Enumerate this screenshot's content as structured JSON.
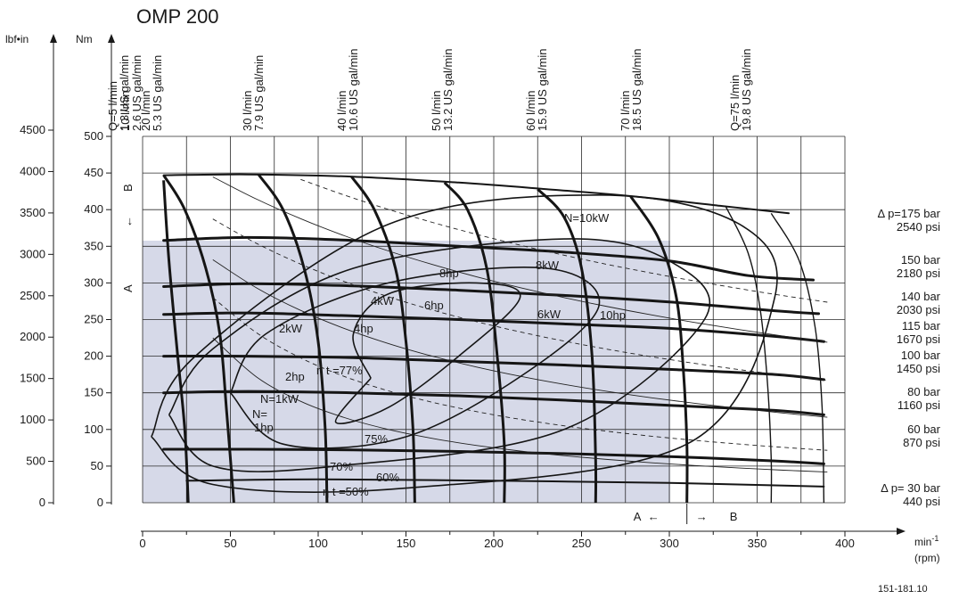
{
  "chart_data": {
    "type": "line",
    "title": "OMP 200",
    "x_axis": {
      "label": "min-1",
      "label_sup": "-1",
      "unit": "(rpm)",
      "ticks": [
        0,
        50,
        100,
        150,
        200,
        250,
        300,
        350,
        400
      ],
      "range": [
        0,
        400
      ]
    },
    "y_axis_nm": {
      "label": "Nm",
      "ticks": [
        0,
        50,
        100,
        150,
        200,
        250,
        300,
        350,
        400,
        450,
        500
      ],
      "range": [
        0,
        500
      ]
    },
    "y_axis_lbf": {
      "label": "lbf•in",
      "ticks": [
        0,
        500,
        1000,
        1500,
        2000,
        2500,
        3000,
        3500,
        4000,
        4500
      ]
    },
    "flow_labels": [
      {
        "lines": [
          "Q=5 l/min",
          "1.3 US gal/min"
        ],
        "rpm": 12
      },
      {
        "lines": [
          "10 l/min",
          "2.6 US gal/min"
        ],
        "rpm": 12
      },
      {
        "lines": [
          "20 l/min",
          "5.3 US gal/min"
        ],
        "rpm": 66
      },
      {
        "lines": [
          "30 l/min",
          "7.9 US gal/min"
        ],
        "rpm": 119
      },
      {
        "lines": [
          "40 l/min",
          "10.6 US gal/min"
        ],
        "rpm": 172
      },
      {
        "lines": [
          "50 l/min",
          "13.2 US gal/min"
        ],
        "rpm": 225
      },
      {
        "lines": [
          "60 l/min",
          "15.9 US gal/min"
        ],
        "rpm": 278
      },
      {
        "lines": [
          "70 l/min",
          "18.5 US gal/min"
        ],
        "rpm": 332
      },
      {
        "lines": [
          "Q=75 l/min",
          "19.8 US gal/min"
        ],
        "rpm": 358
      }
    ],
    "series": [
      {
        "name": "Δ p=175 bar",
        "values": [
          [
            12,
            447
          ],
          [
            60,
            448
          ],
          [
            120,
            445
          ],
          [
            180,
            437
          ],
          [
            230,
            428
          ],
          [
            280,
            418
          ],
          [
            330,
            405
          ],
          [
            368,
            395
          ]
        ]
      },
      {
        "name": "150 bar",
        "values": [
          [
            12,
            358
          ],
          [
            60,
            362
          ],
          [
            120,
            358
          ],
          [
            180,
            350
          ],
          [
            240,
            342
          ],
          [
            300,
            330
          ],
          [
            345,
            310
          ],
          [
            382,
            304
          ]
        ]
      },
      {
        "name": "140 bar",
        "values": [
          [
            12,
            295
          ],
          [
            60,
            299
          ],
          [
            120,
            296
          ],
          [
            180,
            290
          ],
          [
            240,
            283
          ],
          [
            300,
            274
          ],
          [
            360,
            262
          ],
          [
            385,
            258
          ]
        ]
      },
      {
        "name": "115 bar",
        "values": [
          [
            12,
            257
          ],
          [
            60,
            259
          ],
          [
            120,
            255
          ],
          [
            180,
            250
          ],
          [
            240,
            244
          ],
          [
            300,
            238
          ],
          [
            360,
            227
          ],
          [
            388,
            220
          ]
        ]
      },
      {
        "name": "100 bar",
        "values": [
          [
            12,
            200
          ],
          [
            60,
            200
          ],
          [
            120,
            198
          ],
          [
            180,
            193
          ],
          [
            240,
            188
          ],
          [
            300,
            182
          ],
          [
            360,
            175
          ],
          [
            388,
            168
          ]
        ]
      },
      {
        "name": "80 bar",
        "values": [
          [
            12,
            150
          ],
          [
            60,
            152
          ],
          [
            120,
            150
          ],
          [
            180,
            146
          ],
          [
            240,
            140
          ],
          [
            300,
            133
          ],
          [
            360,
            126
          ],
          [
            388,
            120
          ]
        ]
      },
      {
        "name": "60 bar",
        "values": [
          [
            12,
            73
          ],
          [
            60,
            73
          ],
          [
            120,
            72
          ],
          [
            180,
            70
          ],
          [
            240,
            67
          ],
          [
            300,
            63
          ],
          [
            360,
            57
          ],
          [
            388,
            53
          ]
        ]
      },
      {
        "name": "Δ p= 30 bar",
        "values": [
          [
            25,
            30
          ],
          [
            100,
            32
          ],
          [
            200,
            30
          ],
          [
            300,
            27
          ],
          [
            388,
            22
          ]
        ]
      }
    ],
    "pressure_labels": [
      {
        "bar": "Δ p=175 bar",
        "psi": "2540 psi"
      },
      {
        "bar": "150 bar",
        "psi": "2180 psi"
      },
      {
        "bar": "140 bar",
        "psi": "2030 psi"
      },
      {
        "bar": "115 bar",
        "psi": "1670 psi"
      },
      {
        "bar": "100 bar",
        "psi": "1450 psi"
      },
      {
        "bar": "80 bar",
        "psi": "1160 psi"
      },
      {
        "bar": "60 bar",
        "psi": "870 psi"
      },
      {
        "bar": "Δ p= 30 bar",
        "psi": "440 psi"
      }
    ],
    "power_labels": [
      "N=10kW",
      "8kW",
      "6kW",
      "4kW",
      "2kW",
      "N=1kW",
      "8hp",
      "10hp",
      "6hp",
      "4hp",
      "2hp",
      "N=",
      "1hp"
    ],
    "efficiency_labels": [
      "η t =77%",
      "75%",
      "70%",
      "60%",
      "η t =50%"
    ],
    "operating_zones": {
      "a_label": "A",
      "b_label": "B",
      "arrow_left": "←",
      "arrow_right": "→",
      "intermittent_boundary_rpm": 310
    },
    "figure_ref": "151-181.10",
    "grid": true,
    "shaded_region": {
      "rpm_max": 300,
      "torque_max": 355
    }
  }
}
